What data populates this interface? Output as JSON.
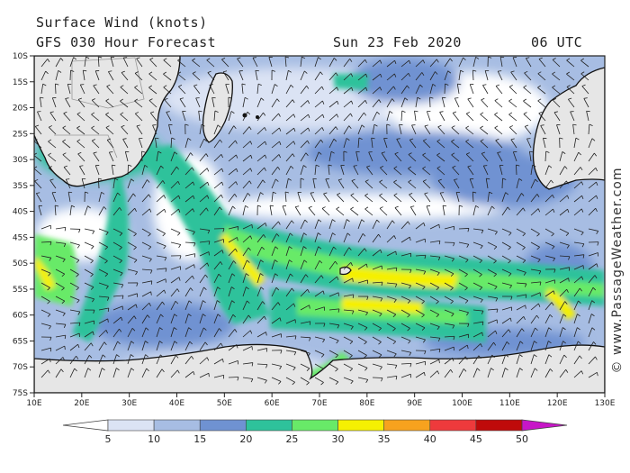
{
  "header": {
    "title": "Surface Wind (knots)",
    "forecast": "GFS 030 Hour Forecast",
    "date": "Sun 23 Feb 2020",
    "time": "06 UTC"
  },
  "credit": "© www.PassageWeather.com",
  "map": {
    "lat_labels": [
      "10S",
      "15S",
      "20S",
      "25S",
      "30S",
      "35S",
      "40S",
      "45S",
      "50S",
      "55S",
      "60S",
      "65S",
      "70S",
      "75S"
    ],
    "lon_labels": [
      "10E",
      "20E",
      "30E",
      "40E",
      "50E",
      "60E",
      "70E",
      "80E",
      "90E",
      "100E",
      "110E",
      "120E",
      "130E"
    ]
  },
  "scale": {
    "values": [
      "5",
      "10",
      "15",
      "20",
      "25",
      "30",
      "35",
      "40",
      "45",
      "50"
    ],
    "colors": [
      "#ffffff",
      "#dbe3f4",
      "#a7bde3",
      "#6f92d2",
      "#2ec29b",
      "#68ea68",
      "#f5f002",
      "#f7a21e",
      "#ee3a3c",
      "#bf0a0a",
      "#c716c7"
    ]
  }
}
